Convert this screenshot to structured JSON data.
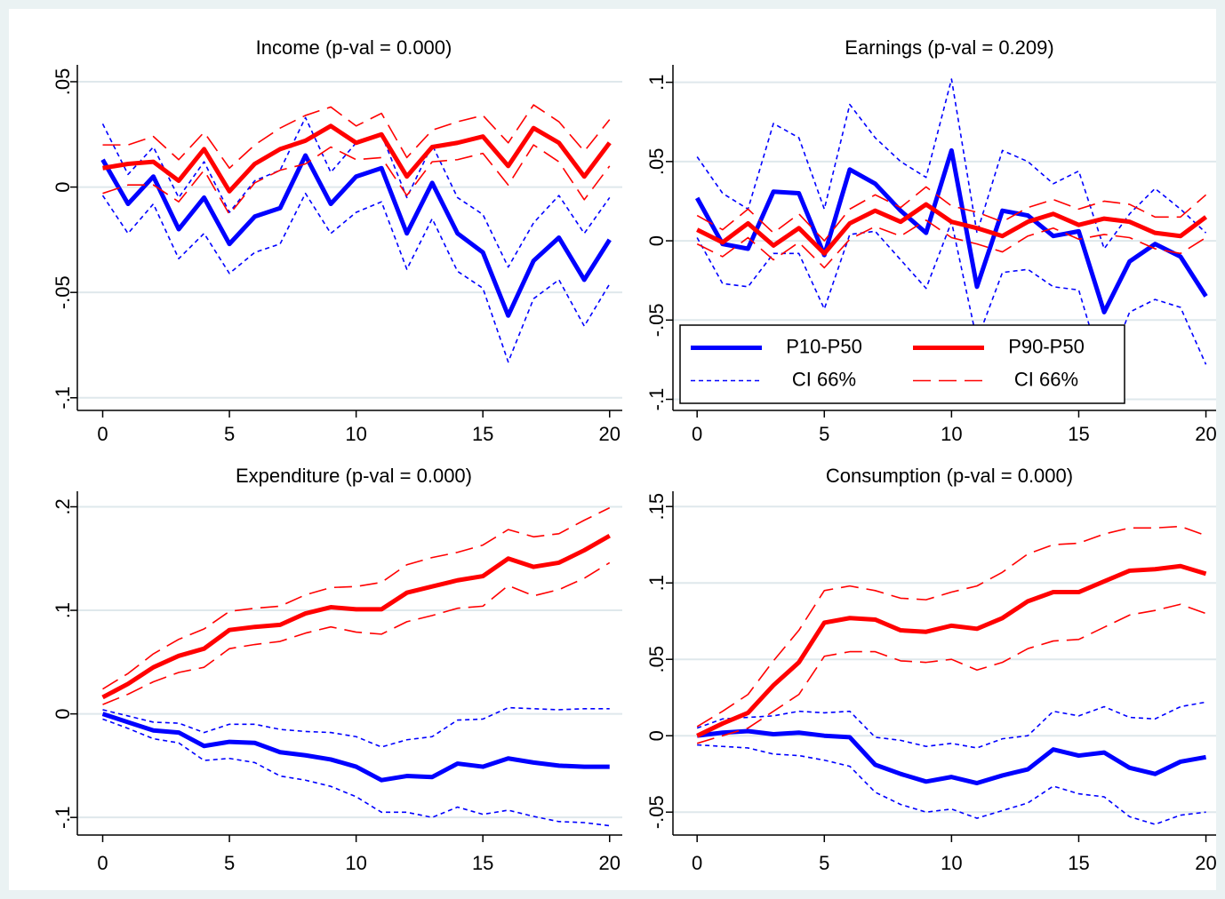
{
  "chart_data": [
    {
      "type": "line",
      "title": "Income (p-val = 0.000)",
      "x": [
        0,
        1,
        2,
        3,
        4,
        5,
        6,
        7,
        8,
        9,
        10,
        11,
        12,
        13,
        14,
        15,
        16,
        17,
        18,
        19,
        20
      ],
      "xlim": [
        -1,
        20.5
      ],
      "xticks": [
        0,
        5,
        10,
        15,
        20
      ],
      "ylim": [
        -0.106,
        0.058
      ],
      "yticks": [
        {
          "value": -0.1,
          "label": "-.1"
        },
        {
          "value": -0.05,
          "label": "-.05"
        },
        0,
        {
          "value": 0.05,
          "label": ".05"
        }
      ],
      "grid": true,
      "series": [
        {
          "color": "#0000ff",
          "style": "solid",
          "values": [
            0.013,
            -0.008,
            0.005,
            -0.02,
            -0.005,
            -0.027,
            -0.014,
            -0.01,
            0.015,
            -0.008,
            0.005,
            0.009,
            -0.022,
            0.002,
            -0.022,
            -0.031,
            -0.061,
            -0.035,
            -0.024,
            -0.044,
            -0.025
          ]
        },
        {
          "color": "#0000ff",
          "style": "short-dash",
          "values": [
            -0.004,
            -0.022,
            -0.008,
            -0.034,
            -0.022,
            -0.041,
            -0.031,
            -0.027,
            -0.003,
            -0.022,
            -0.012,
            -0.007,
            -0.039,
            -0.015,
            -0.04,
            -0.048,
            -0.083,
            -0.053,
            -0.044,
            -0.066,
            -0.046
          ]
        },
        {
          "color": "#0000ff",
          "style": "short-dash",
          "values": [
            0.03,
            0.006,
            0.019,
            -0.005,
            0.012,
            -0.012,
            0.003,
            0.008,
            0.033,
            0.007,
            0.021,
            0.025,
            -0.005,
            0.02,
            -0.005,
            -0.013,
            -0.038,
            -0.017,
            -0.004,
            -0.022,
            -0.005
          ]
        },
        {
          "color": "#ff0000",
          "style": "solid",
          "values": [
            0.009,
            0.011,
            0.012,
            0.003,
            0.018,
            -0.002,
            0.011,
            0.018,
            0.022,
            0.029,
            0.021,
            0.025,
            0.005,
            0.019,
            0.021,
            0.024,
            0.01,
            0.028,
            0.021,
            0.005,
            0.021
          ]
        },
        {
          "color": "#ff0000",
          "style": "long-dash",
          "values": [
            -0.003,
            0.001,
            0.001,
            -0.007,
            0.008,
            -0.013,
            0.002,
            0.008,
            0.011,
            0.019,
            0.013,
            0.014,
            -0.004,
            0.012,
            0.013,
            0.016,
            0.001,
            0.02,
            0.012,
            -0.006,
            0.01
          ]
        },
        {
          "color": "#ff0000",
          "style": "long-dash",
          "values": [
            0.02,
            0.02,
            0.024,
            0.013,
            0.026,
            0.009,
            0.02,
            0.028,
            0.034,
            0.038,
            0.029,
            0.035,
            0.014,
            0.027,
            0.031,
            0.034,
            0.021,
            0.039,
            0.031,
            0.017,
            0.032
          ]
        }
      ]
    },
    {
      "type": "line",
      "title": "Earnings (p-val = 0.209)",
      "x": [
        0,
        1,
        2,
        3,
        4,
        5,
        6,
        7,
        8,
        9,
        10,
        11,
        12,
        13,
        14,
        15,
        16,
        17,
        18,
        19,
        20
      ],
      "xlim": [
        -0.95,
        20.4
      ],
      "xticks": [
        0,
        5,
        10,
        15,
        20
      ],
      "ylim": [
        -0.107,
        0.111
      ],
      "yticks": [
        {
          "value": -0.1,
          "label": "-.1"
        },
        {
          "value": -0.05,
          "label": "-.05"
        },
        0,
        {
          "value": 0.05,
          "label": ".05"
        },
        {
          "value": 0.1,
          "label": ".1"
        }
      ],
      "grid": true,
      "legend": "lower left",
      "series": [
        {
          "name": "P10-P50",
          "color": "#0000ff",
          "style": "solid",
          "values": [
            0.027,
            -0.002,
            -0.005,
            0.031,
            0.03,
            -0.009,
            0.045,
            0.036,
            0.019,
            0.005,
            0.057,
            -0.029,
            0.019,
            0.016,
            0.003,
            0.006,
            -0.045,
            -0.013,
            -0.002,
            -0.01,
            -0.035
          ]
        },
        {
          "name": "CI 66%",
          "color": "#0000ff",
          "style": "short-dash",
          "values": [
            0.002,
            -0.027,
            -0.029,
            -0.008,
            -0.008,
            -0.043,
            0.004,
            0.006,
            -0.012,
            -0.03,
            0.012,
            -0.063,
            -0.02,
            -0.018,
            -0.029,
            -0.031,
            -0.085,
            -0.045,
            -0.037,
            -0.042,
            -0.078
          ]
        },
        {
          "color": "#0000ff",
          "style": "short-dash",
          "values": [
            0.053,
            0.03,
            0.02,
            0.074,
            0.065,
            0.02,
            0.086,
            0.065,
            0.05,
            0.04,
            0.102,
            0.005,
            0.057,
            0.05,
            0.036,
            0.044,
            -0.005,
            0.017,
            0.033,
            0.02,
            0.005
          ]
        },
        {
          "name": "P90-P50",
          "color": "#ff0000",
          "style": "solid",
          "values": [
            0.007,
            -0.001,
            0.011,
            -0.003,
            0.008,
            -0.008,
            0.011,
            0.019,
            0.012,
            0.023,
            0.012,
            0.008,
            0.003,
            0.012,
            0.017,
            0.01,
            0.014,
            0.012,
            0.005,
            0.003,
            0.015
          ]
        },
        {
          "name": "CI 66%",
          "color": "#ff0000",
          "style": "long-dash",
          "values": [
            -0.002,
            -0.01,
            0.002,
            -0.012,
            -0.001,
            -0.017,
            0.001,
            0.009,
            0.003,
            0.013,
            0.002,
            -0.002,
            -0.007,
            0.003,
            0.008,
            0.001,
            0.004,
            0.002,
            -0.005,
            -0.008,
            0.002
          ]
        },
        {
          "color": "#ff0000",
          "style": "long-dash",
          "values": [
            0.016,
            0.007,
            0.02,
            0.005,
            0.017,
            0,
            0.02,
            0.029,
            0.021,
            0.034,
            0.022,
            0.018,
            0.012,
            0.021,
            0.026,
            0.02,
            0.025,
            0.023,
            0.015,
            0.015,
            0.029
          ]
        }
      ]
    },
    {
      "type": "line",
      "title": "Expenditure (p-val = 0.000)",
      "x": [
        0,
        1,
        2,
        3,
        4,
        5,
        6,
        7,
        8,
        9,
        10,
        11,
        12,
        13,
        14,
        15,
        16,
        17,
        18,
        19,
        20
      ],
      "xlim": [
        -1,
        20.5
      ],
      "xticks": [
        0,
        5,
        10,
        15,
        20
      ],
      "ylim": [
        -0.117,
        0.215
      ],
      "yticks": [
        {
          "value": -0.1,
          "label": "-.1"
        },
        0,
        {
          "value": 0.1,
          "label": ".1"
        },
        {
          "value": 0.2,
          "label": ".2"
        }
      ],
      "grid": true,
      "series": [
        {
          "color": "#0000ff",
          "style": "solid",
          "values": [
            0,
            -0.008,
            -0.016,
            -0.018,
            -0.031,
            -0.027,
            -0.028,
            -0.037,
            -0.04,
            -0.044,
            -0.051,
            -0.064,
            -0.06,
            -0.061,
            -0.048,
            -0.051,
            -0.043,
            -0.047,
            -0.05,
            -0.051,
            -0.051
          ]
        },
        {
          "color": "#0000ff",
          "style": "short-dash",
          "values": [
            -0.005,
            -0.014,
            -0.024,
            -0.028,
            -0.045,
            -0.043,
            -0.047,
            -0.06,
            -0.064,
            -0.07,
            -0.08,
            -0.095,
            -0.095,
            -0.1,
            -0.09,
            -0.097,
            -0.093,
            -0.099,
            -0.104,
            -0.105,
            -0.108
          ]
        },
        {
          "color": "#0000ff",
          "style": "short-dash",
          "values": [
            0.004,
            -0.002,
            -0.008,
            -0.009,
            -0.018,
            -0.01,
            -0.01,
            -0.015,
            -0.017,
            -0.018,
            -0.022,
            -0.032,
            -0.025,
            -0.022,
            -0.006,
            -0.005,
            0.006,
            0.005,
            0.004,
            0.005,
            0.005
          ]
        },
        {
          "color": "#ff0000",
          "style": "solid",
          "values": [
            0.016,
            0.029,
            0.045,
            0.056,
            0.063,
            0.081,
            0.084,
            0.086,
            0.097,
            0.103,
            0.101,
            0.101,
            0.117,
            0.123,
            0.129,
            0.133,
            0.15,
            0.142,
            0.146,
            0.158,
            0.172
          ]
        },
        {
          "color": "#ff0000",
          "style": "long-dash",
          "values": [
            0.009,
            0.019,
            0.031,
            0.04,
            0.045,
            0.063,
            0.067,
            0.07,
            0.078,
            0.084,
            0.079,
            0.077,
            0.089,
            0.095,
            0.102,
            0.104,
            0.124,
            0.114,
            0.12,
            0.131,
            0.146
          ]
        },
        {
          "color": "#ff0000",
          "style": "long-dash",
          "values": [
            0.024,
            0.039,
            0.058,
            0.072,
            0.082,
            0.099,
            0.102,
            0.104,
            0.115,
            0.122,
            0.123,
            0.127,
            0.144,
            0.151,
            0.156,
            0.163,
            0.178,
            0.171,
            0.174,
            0.187,
            0.199
          ]
        }
      ]
    },
    {
      "type": "line",
      "title": "Consumption (p-val = 0.000)",
      "x": [
        0,
        1,
        2,
        3,
        4,
        5,
        6,
        7,
        8,
        9,
        10,
        11,
        12,
        13,
        14,
        15,
        16,
        17,
        18,
        19,
        20
      ],
      "xlim": [
        -0.95,
        20.4
      ],
      "xticks": [
        0,
        5,
        10,
        15,
        20
      ],
      "ylim": [
        -0.065,
        0.16
      ],
      "yticks": [
        {
          "value": -0.05,
          "label": "-.05"
        },
        0,
        {
          "value": 0.05,
          "label": ".05"
        },
        {
          "value": 0.1,
          "label": ".1"
        },
        {
          "value": 0.15,
          "label": ".15"
        }
      ],
      "grid": true,
      "series": [
        {
          "color": "#0000ff",
          "style": "solid",
          "values": [
            0,
            0.002,
            0.003,
            0.001,
            0.002,
            0,
            -0.001,
            -0.019,
            -0.025,
            -0.03,
            -0.027,
            -0.031,
            -0.026,
            -0.022,
            -0.009,
            -0.013,
            -0.011,
            -0.021,
            -0.025,
            -0.017,
            -0.014
          ]
        },
        {
          "color": "#0000ff",
          "style": "short-dash",
          "values": [
            -0.006,
            -0.007,
            -0.008,
            -0.012,
            -0.013,
            -0.016,
            -0.02,
            -0.037,
            -0.045,
            -0.05,
            -0.048,
            -0.054,
            -0.049,
            -0.044,
            -0.033,
            -0.038,
            -0.04,
            -0.053,
            -0.058,
            -0.052,
            -0.05
          ]
        },
        {
          "color": "#0000ff",
          "style": "short-dash",
          "values": [
            0.005,
            0.011,
            0.012,
            0.013,
            0.016,
            0.015,
            0.016,
            -0.001,
            -0.003,
            -0.007,
            -0.005,
            -0.008,
            -0.002,
            0,
            0.016,
            0.013,
            0.019,
            0.012,
            0.011,
            0.019,
            0.022
          ]
        },
        {
          "color": "#ff0000",
          "style": "solid",
          "values": [
            0,
            0.008,
            0.015,
            0.033,
            0.048,
            0.074,
            0.077,
            0.076,
            0.069,
            0.068,
            0.072,
            0.07,
            0.077,
            0.088,
            0.094,
            0.094,
            0.101,
            0.108,
            0.109,
            0.111,
            0.106
          ]
        },
        {
          "color": "#ff0000",
          "style": "long-dash",
          "values": [
            -0.005,
            0,
            0.005,
            0.016,
            0.027,
            0.052,
            0.055,
            0.055,
            0.049,
            0.048,
            0.05,
            0.043,
            0.048,
            0.057,
            0.062,
            0.063,
            0.071,
            0.079,
            0.082,
            0.086,
            0.08
          ]
        },
        {
          "color": "#ff0000",
          "style": "long-dash",
          "values": [
            0.006,
            0.016,
            0.027,
            0.049,
            0.069,
            0.095,
            0.098,
            0.095,
            0.09,
            0.089,
            0.094,
            0.098,
            0.107,
            0.119,
            0.125,
            0.126,
            0.132,
            0.136,
            0.136,
            0.137,
            0.131
          ]
        }
      ]
    }
  ]
}
